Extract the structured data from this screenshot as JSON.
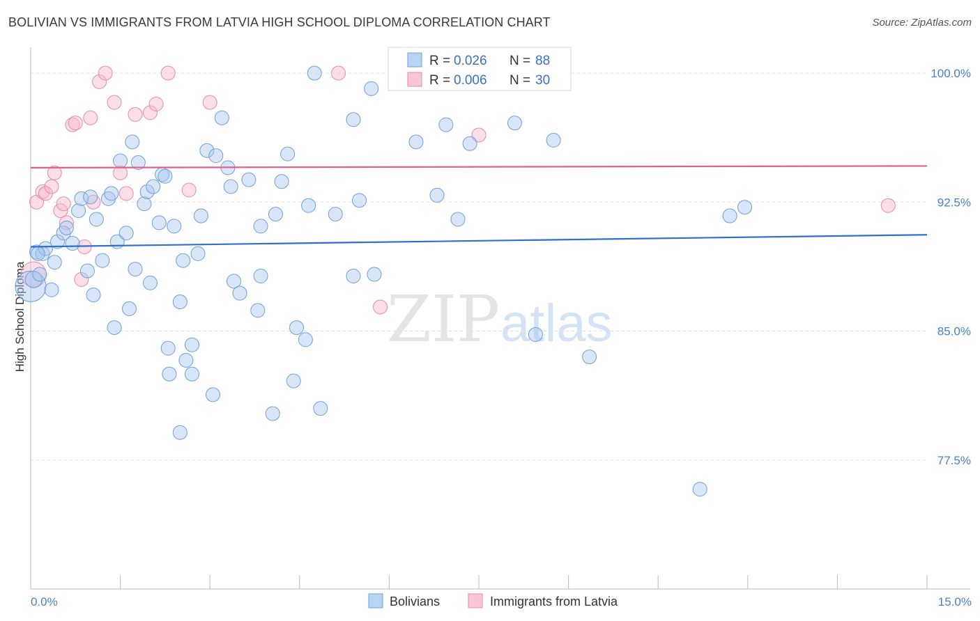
{
  "title": "BOLIVIAN VS IMMIGRANTS FROM LATVIA HIGH SCHOOL DIPLOMA CORRELATION CHART",
  "source": "Source: ZipAtlas.com",
  "watermark": {
    "zip": "ZIP",
    "atlas": "atlas"
  },
  "chart_data": {
    "type": "scatter",
    "title": "BOLIVIAN VS IMMIGRANTS FROM LATVIA HIGH SCHOOL DIPLOMA CORRELATION CHART",
    "xlabel": "",
    "ylabel": "High School Diploma",
    "xlim": [
      0,
      15
    ],
    "ylim": [
      70.0,
      101.5
    ],
    "x_tick_labels": {
      "left": "0.0%",
      "right": "15.0%"
    },
    "y_ticks": [
      {
        "value": 100.0,
        "label": "100.0%"
      },
      {
        "value": 92.5,
        "label": "92.5%"
      },
      {
        "value": 85.0,
        "label": "85.0%"
      },
      {
        "value": 77.5,
        "label": "77.5%"
      }
    ],
    "legend": {
      "entries": [
        {
          "r_label": "R =",
          "r_value": "0.026",
          "n_label": "N =",
          "n_value": "88"
        },
        {
          "r_label": "R =",
          "r_value": "0.006",
          "n_label": "N =",
          "n_value": "30"
        }
      ]
    },
    "series": [
      {
        "name": "Bolivians",
        "color": "#a8c8f0",
        "stroke": "#6f9fd8",
        "trend_color": "#2f6fd0",
        "trend": {
          "y_at_x0": 89.9,
          "y_at_xmax": 90.6
        },
        "points": [
          [
            0.0,
            87.6,
            22
          ],
          [
            0.05,
            88.0,
            12
          ],
          [
            0.1,
            89.6,
            10
          ],
          [
            0.15,
            88.3,
            10
          ],
          [
            0.2,
            89.5,
            10
          ],
          [
            0.25,
            89.8,
            10
          ],
          [
            0.35,
            87.4,
            10
          ],
          [
            0.4,
            89.0,
            10
          ],
          [
            0.45,
            90.2,
            10
          ],
          [
            0.55,
            90.7,
            10
          ],
          [
            0.6,
            91.0,
            10
          ],
          [
            0.7,
            90.1,
            10
          ],
          [
            0.8,
            92.0,
            10
          ],
          [
            0.85,
            92.7,
            10
          ],
          [
            0.95,
            88.5,
            10
          ],
          [
            1.0,
            92.8,
            10
          ],
          [
            1.05,
            87.1,
            10
          ],
          [
            1.1,
            91.5,
            10
          ],
          [
            1.2,
            89.1,
            10
          ],
          [
            1.3,
            92.7,
            10
          ],
          [
            1.35,
            93.0,
            10
          ],
          [
            1.4,
            85.2,
            10
          ],
          [
            1.45,
            90.2,
            10
          ],
          [
            1.5,
            94.9,
            10
          ],
          [
            1.6,
            90.7,
            10
          ],
          [
            1.65,
            86.3,
            10
          ],
          [
            1.7,
            96.0,
            10
          ],
          [
            1.75,
            88.6,
            10
          ],
          [
            1.8,
            94.8,
            10
          ],
          [
            1.9,
            92.4,
            10
          ],
          [
            1.95,
            93.1,
            10
          ],
          [
            2.0,
            87.8,
            10
          ],
          [
            2.05,
            93.4,
            10
          ],
          [
            2.15,
            91.3,
            10
          ],
          [
            2.2,
            94.1,
            10
          ],
          [
            2.25,
            94.0,
            10
          ],
          [
            2.3,
            84.0,
            10
          ],
          [
            2.32,
            82.5,
            10
          ],
          [
            2.4,
            91.1,
            10
          ],
          [
            2.5,
            79.1,
            10
          ],
          [
            2.5,
            86.7,
            10
          ],
          [
            2.55,
            89.1,
            10
          ],
          [
            2.6,
            83.3,
            10
          ],
          [
            2.7,
            84.2,
            10
          ],
          [
            2.7,
            82.5,
            10
          ],
          [
            2.8,
            89.5,
            10
          ],
          [
            2.85,
            91.7,
            10
          ],
          [
            2.95,
            95.5,
            10
          ],
          [
            3.05,
            81.3,
            10
          ],
          [
            3.1,
            95.2,
            10
          ],
          [
            3.2,
            97.4,
            10
          ],
          [
            3.3,
            94.5,
            10
          ],
          [
            3.35,
            93.4,
            10
          ],
          [
            3.4,
            87.9,
            10
          ],
          [
            3.5,
            87.2,
            10
          ],
          [
            3.65,
            93.8,
            10
          ],
          [
            3.8,
            86.2,
            10
          ],
          [
            3.85,
            88.2,
            10
          ],
          [
            3.85,
            91.1,
            10
          ],
          [
            4.05,
            80.2,
            10
          ],
          [
            4.1,
            91.8,
            10
          ],
          [
            4.2,
            93.7,
            10
          ],
          [
            4.3,
            95.3,
            10
          ],
          [
            4.4,
            82.1,
            10
          ],
          [
            4.45,
            85.2,
            10
          ],
          [
            4.6,
            84.5,
            10
          ],
          [
            4.65,
            92.3,
            10
          ],
          [
            4.75,
            100.0,
            10
          ],
          [
            4.85,
            80.5,
            10
          ],
          [
            5.1,
            91.8,
            10
          ],
          [
            5.4,
            88.2,
            10
          ],
          [
            5.4,
            97.3,
            10
          ],
          [
            5.5,
            92.6,
            10
          ],
          [
            5.7,
            99.1,
            10
          ],
          [
            5.75,
            88.3,
            10
          ],
          [
            6.45,
            96.0,
            10
          ],
          [
            6.8,
            92.9,
            10
          ],
          [
            6.95,
            97.0,
            10
          ],
          [
            7.15,
            91.5,
            10
          ],
          [
            7.35,
            95.9,
            10
          ],
          [
            8.1,
            97.1,
            10
          ],
          [
            8.45,
            84.8,
            10
          ],
          [
            8.75,
            96.1,
            10
          ],
          [
            9.35,
            83.5,
            10
          ],
          [
            11.2,
            75.8,
            10
          ],
          [
            11.7,
            91.7,
            10
          ],
          [
            11.95,
            92.2,
            10
          ],
          [
            0.12,
            89.5,
            10
          ]
        ]
      },
      {
        "name": "Immigrants from Latvia",
        "color": "#f7b8cc",
        "stroke": "#e78aa8",
        "trend_color": "#e06090",
        "trend": {
          "y_at_x0": 94.5,
          "y_at_xmax": 94.6
        },
        "points": [
          [
            0.05,
            88.3,
            18
          ],
          [
            0.1,
            92.5,
            10
          ],
          [
            0.2,
            93.1,
            10
          ],
          [
            0.25,
            93.0,
            10
          ],
          [
            0.35,
            93.4,
            10
          ],
          [
            0.4,
            94.2,
            10
          ],
          [
            0.5,
            92.0,
            10
          ],
          [
            0.55,
            92.4,
            10
          ],
          [
            0.6,
            91.3,
            10
          ],
          [
            0.7,
            97.0,
            10
          ],
          [
            0.75,
            97.1,
            10
          ],
          [
            0.85,
            88.0,
            10
          ],
          [
            0.9,
            89.9,
            10
          ],
          [
            1.0,
            97.4,
            10
          ],
          [
            1.05,
            92.5,
            10
          ],
          [
            1.15,
            99.5,
            10
          ],
          [
            1.25,
            100.0,
            10
          ],
          [
            1.4,
            98.3,
            10
          ],
          [
            1.5,
            94.2,
            10
          ],
          [
            1.6,
            93.0,
            10
          ],
          [
            1.75,
            97.6,
            10
          ],
          [
            2.0,
            97.7,
            10
          ],
          [
            2.1,
            98.2,
            10
          ],
          [
            2.3,
            100.0,
            10
          ],
          [
            2.65,
            93.2,
            10
          ],
          [
            3.0,
            98.3,
            10
          ],
          [
            5.15,
            100.0,
            10
          ],
          [
            5.85,
            86.4,
            10
          ],
          [
            7.5,
            96.4,
            10
          ],
          [
            14.35,
            92.3,
            10
          ]
        ]
      }
    ]
  }
}
